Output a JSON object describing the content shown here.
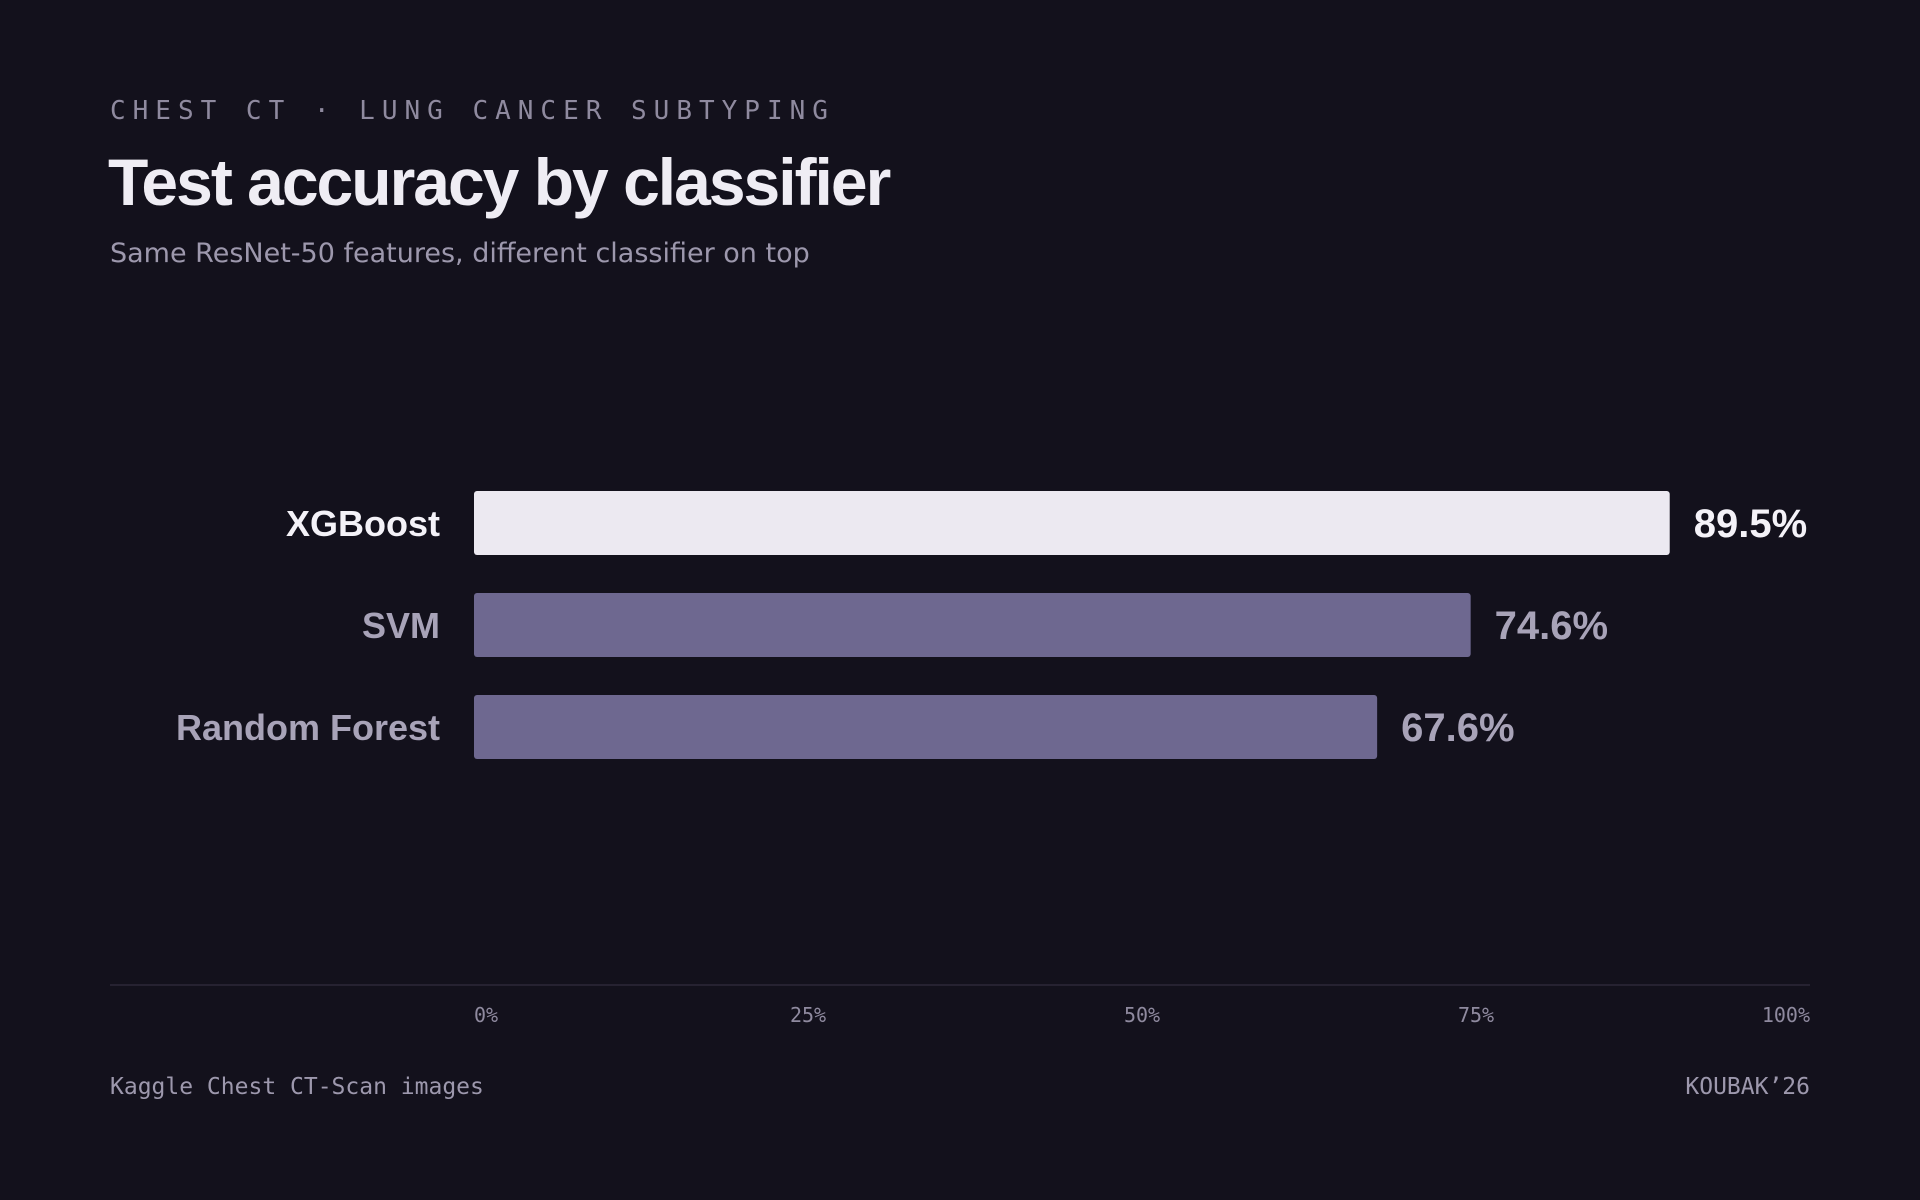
{
  "header": {
    "eyebrow": "CHEST CT · LUNG CANCER SUBTYPING"
  },
  "footer": {
    "source": "Kaggle Chest CT-Scan images",
    "credit": "KOUBAK’26"
  },
  "colors": {
    "background": "#13111c",
    "highlight_bar": "#ece9f1",
    "bar": "#6e6890",
    "highlight_text": "#f4f2f8",
    "muted_text": "#a8a3b8",
    "axis_line": "#2c2938"
  },
  "chart_data": {
    "type": "bar",
    "orientation": "horizontal",
    "title": "Test accuracy by classifier",
    "subtitle": "Same ResNet-50 features, different classifier on top",
    "categories": [
      "XGBoost",
      "SVM",
      "Random Forest"
    ],
    "values": [
      89.5,
      74.6,
      67.6
    ],
    "value_labels": [
      "89.5%",
      "74.6%",
      "67.6%"
    ],
    "highlight": [
      true,
      false,
      false
    ],
    "xlim": [
      0,
      100
    ],
    "xticks": [
      0,
      25,
      50,
      75,
      100
    ],
    "xtick_labels": [
      "0%",
      "25%",
      "50%",
      "75%",
      "100%"
    ],
    "xlabel": "",
    "ylabel": "",
    "grid": false,
    "legend": "none"
  }
}
